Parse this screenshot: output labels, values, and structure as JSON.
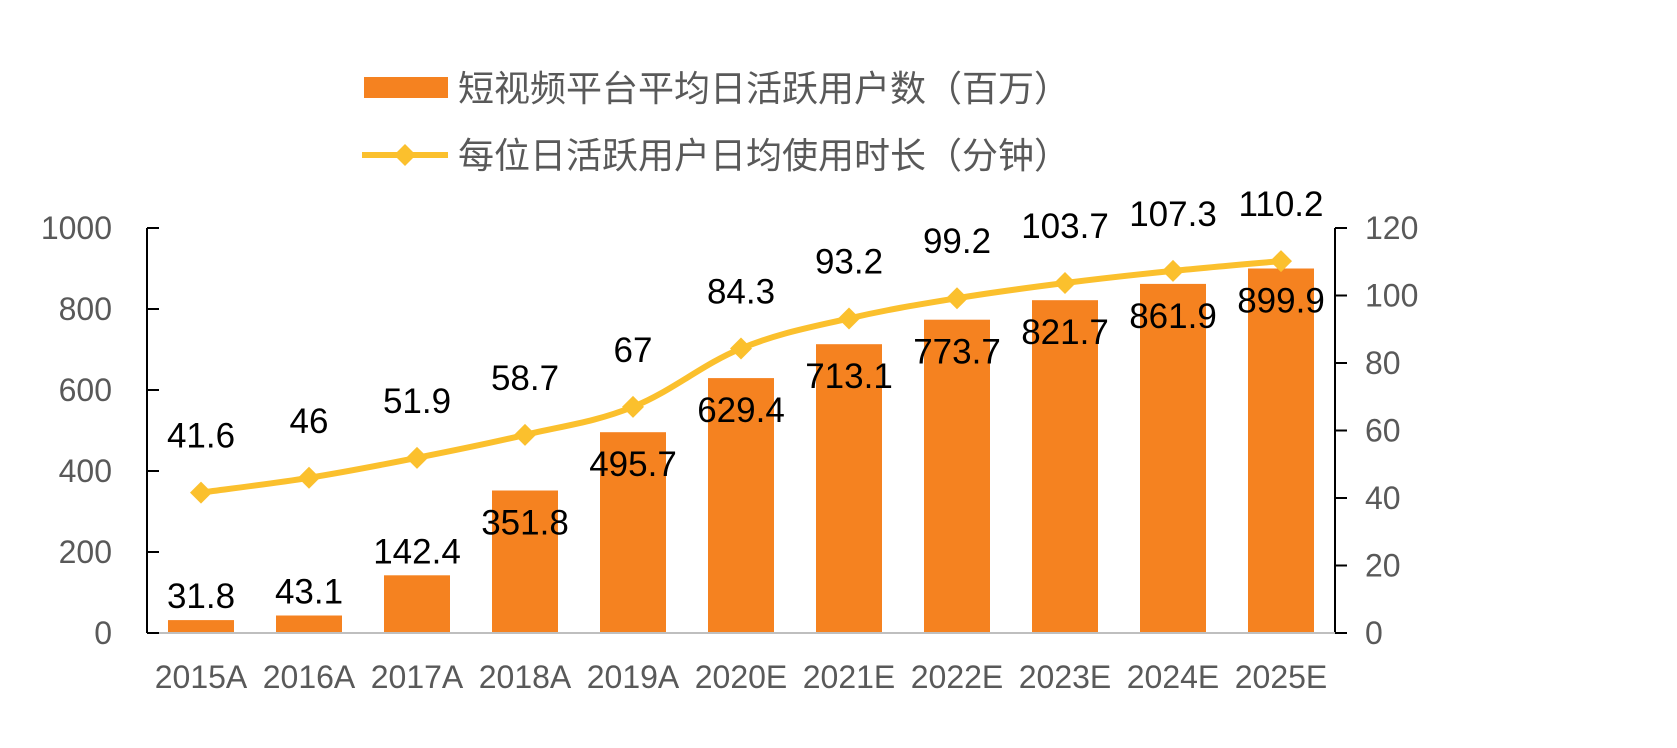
{
  "chart_data": {
    "type": "bar",
    "categories": [
      "2015A",
      "2016A",
      "2017A",
      "2018A",
      "2019A",
      "2020E",
      "2021E",
      "2022E",
      "2023E",
      "2024E",
      "2025E"
    ],
    "series": [
      {
        "name": "短视频平台平均日活跃用户数（百万）",
        "type": "bar",
        "axis": "left",
        "color": "#F58220",
        "values": [
          31.8,
          43.1,
          142.4,
          351.8,
          495.7,
          629.4,
          713.1,
          773.7,
          821.7,
          861.9,
          899.9
        ],
        "labels": [
          "31.8",
          "43.1",
          "142.4",
          "351.8",
          "495.7",
          "629.4",
          "713.1",
          "773.7",
          "821.7",
          "861.9",
          "899.9"
        ]
      },
      {
        "name": "每位日活跃用户日均使用时长（分钟）",
        "type": "line",
        "axis": "right",
        "color": "#FBC02D",
        "marker": "diamond",
        "values": [
          41.6,
          46,
          51.9,
          58.7,
          67,
          84.3,
          93.2,
          99.2,
          103.7,
          107.3,
          110.2
        ],
        "labels": [
          "41.6",
          "46",
          "51.9",
          "58.7",
          "67",
          "84.3",
          "93.2",
          "99.2",
          "103.7",
          "107.3",
          "110.2"
        ]
      }
    ],
    "y_left": {
      "min": 0,
      "max": 1000,
      "ticks": [
        0,
        200,
        400,
        600,
        800,
        1000
      ]
    },
    "y_right": {
      "min": 0,
      "max": 120,
      "ticks": [
        0,
        20,
        40,
        60,
        80,
        100,
        120
      ]
    },
    "title": "",
    "xlabel": "",
    "ylabel": "",
    "grid": false,
    "legend_position": "top-center"
  }
}
